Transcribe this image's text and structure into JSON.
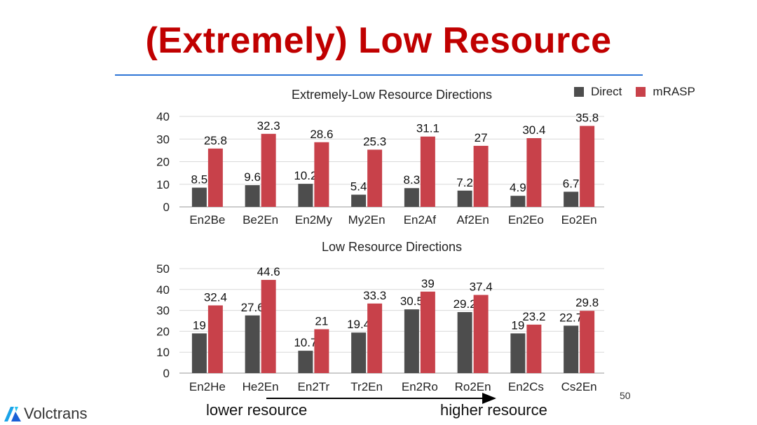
{
  "slide": {
    "title": "(Extremely) Low Resource",
    "page_number": "50",
    "logo_text": "Volctrans",
    "lower_label": "lower resource",
    "higher_label": "higher resource"
  },
  "colors": {
    "direct": "#4d4d4d",
    "mrasp": "#c8414a",
    "title": "#c00000",
    "rule": "#2e75d6"
  },
  "legend": [
    {
      "name": "Direct",
      "color": "#4d4d4d"
    },
    {
      "name": "mRASP",
      "color": "#c8414a"
    }
  ],
  "chart_data": [
    {
      "type": "bar",
      "title": "Extremely-Low Resource Directions",
      "categories": [
        "En2Be",
        "Be2En",
        "En2My",
        "My2En",
        "En2Af",
        "Af2En",
        "En2Eo",
        "Eo2En"
      ],
      "series": [
        {
          "name": "Direct",
          "values": [
            8.5,
            9.6,
            10.2,
            5.4,
            8.3,
            7.2,
            4.9,
            6.7
          ]
        },
        {
          "name": "mRASP",
          "values": [
            25.8,
            32.3,
            28.6,
            25.3,
            31.1,
            27,
            30.4,
            35.8
          ]
        }
      ],
      "ylim": [
        0,
        40
      ],
      "yticks": [
        0,
        10,
        20,
        30,
        40
      ],
      "grid": true,
      "legend_position": "top-right"
    },
    {
      "type": "bar",
      "title": "Low Resource Directions",
      "categories": [
        "En2He",
        "He2En",
        "En2Tr",
        "Tr2En",
        "En2Ro",
        "Ro2En",
        "En2Cs",
        "Cs2En"
      ],
      "series": [
        {
          "name": "Direct",
          "values": [
            19,
            27.6,
            10.7,
            19.4,
            30.5,
            29.2,
            19,
            22.7
          ]
        },
        {
          "name": "mRASP",
          "values": [
            32.4,
            44.6,
            21,
            33.3,
            39,
            37.4,
            23.2,
            29.8
          ]
        }
      ],
      "ylim": [
        0,
        50
      ],
      "yticks": [
        0,
        10,
        20,
        30,
        40,
        50
      ],
      "grid": true
    }
  ]
}
